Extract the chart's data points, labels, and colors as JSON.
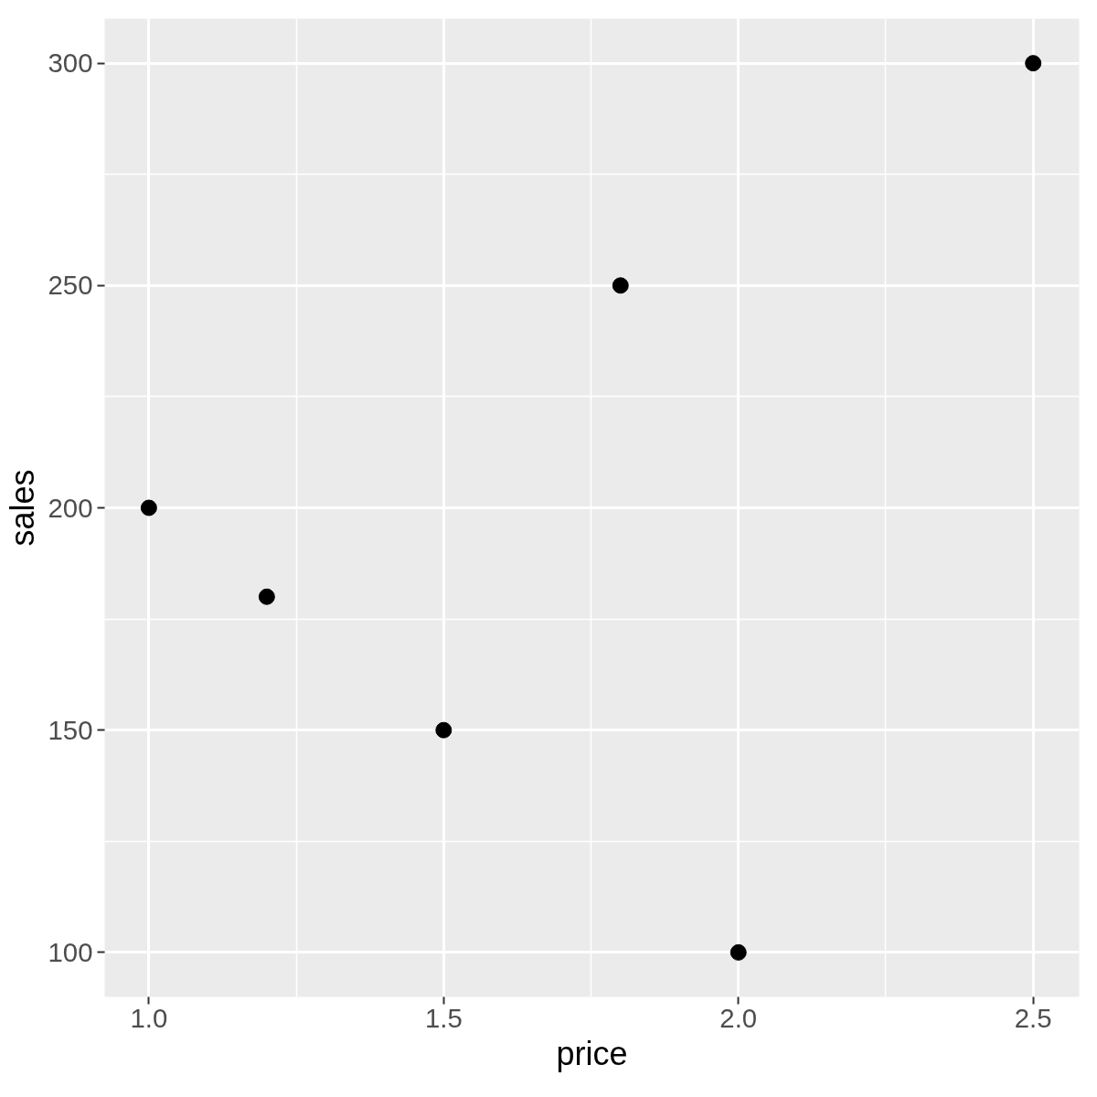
{
  "chart_data": {
    "type": "scatter",
    "xlabel": "price",
    "ylabel": "sales",
    "x": [
      1.0,
      1.2,
      1.5,
      1.8,
      2.0,
      2.5
    ],
    "values": [
      200,
      180,
      150,
      250,
      100,
      300
    ],
    "color": "#000000",
    "marker": "circle",
    "xlim": [
      0.925,
      2.578
    ],
    "ylim": [
      90,
      310
    ],
    "xticks": [
      {
        "value": 1.0,
        "label": "1.0"
      },
      {
        "value": 1.5,
        "label": "1.5"
      },
      {
        "value": 2.0,
        "label": "2.0"
      },
      {
        "value": 2.5,
        "label": "2.5"
      }
    ],
    "yticks": [
      100,
      150,
      200,
      250,
      300
    ],
    "grid": true
  }
}
